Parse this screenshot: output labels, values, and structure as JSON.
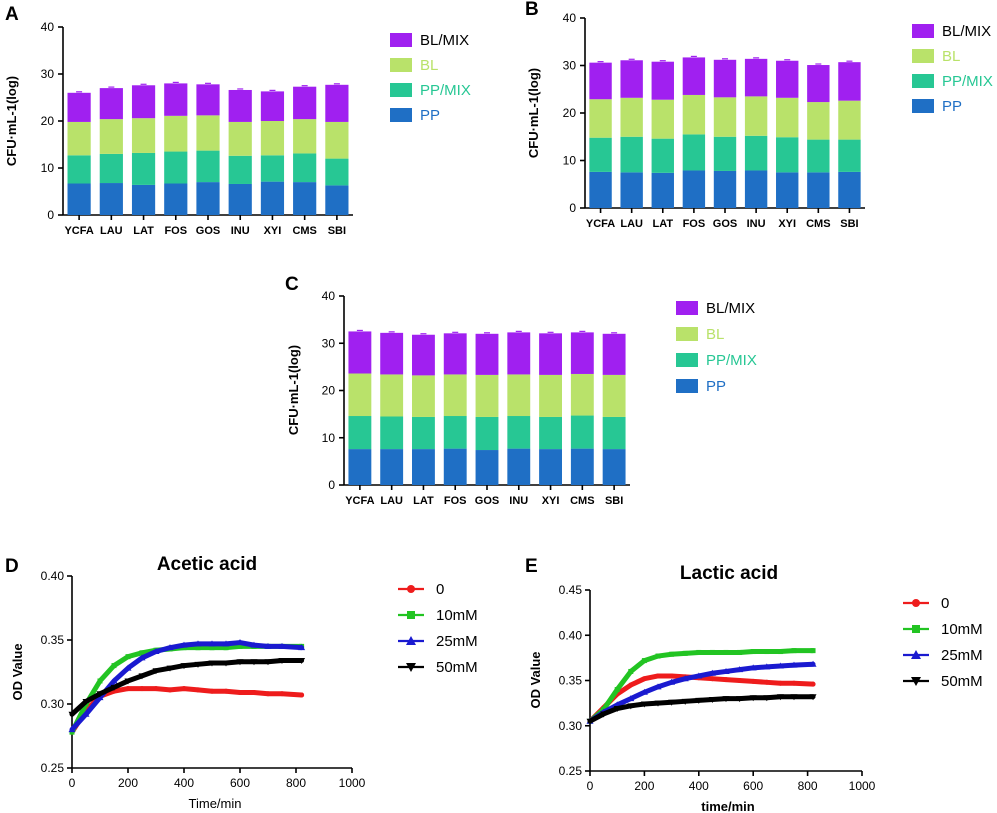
{
  "colors": {
    "PP": "#1f6fc5",
    "PP/MIX": "#27c794",
    "BL": "#b9e26a",
    "BL/MIX": "#a020f0",
    "0": "#ee1c1c",
    "10mM": "#22c422",
    "25mM": "#1a1ad0",
    "50mM": "#000000"
  },
  "chart_data": [
    {
      "panel": "A",
      "type": "bar",
      "stacked": true,
      "ylabel": "CFU·mL-1(log)",
      "ylim": [
        0,
        40
      ],
      "yticks": [
        "0",
        "10",
        "20",
        "30",
        "40"
      ],
      "categories": [
        "YCFA",
        "LAU",
        "LAT",
        "FOS",
        "GOS",
        "INU",
        "XYI",
        "CMS",
        "SBI"
      ],
      "series": [
        {
          "name": "PP",
          "values": [
            6.7,
            6.8,
            6.4,
            6.7,
            7.0,
            6.6,
            7.1,
            7.0,
            6.3
          ]
        },
        {
          "name": "PP/MIX",
          "values": [
            6.0,
            6.2,
            6.8,
            6.8,
            6.7,
            6.0,
            5.6,
            6.1,
            5.7
          ]
        },
        {
          "name": "BL",
          "values": [
            7.1,
            7.4,
            7.4,
            7.6,
            7.5,
            7.2,
            7.3,
            7.3,
            7.8
          ]
        },
        {
          "name": "BL/MIX",
          "values": [
            6.2,
            6.6,
            7.0,
            6.9,
            6.6,
            6.8,
            6.3,
            6.9,
            7.9
          ]
        }
      ],
      "legend": [
        "BL/MIX",
        "BL",
        "PP/MIX",
        "PP"
      ]
    },
    {
      "panel": "B",
      "type": "bar",
      "stacked": true,
      "ylabel": "CFU·mL-1(log)",
      "ylim": [
        0,
        40
      ],
      "yticks": [
        "0",
        "10",
        "20",
        "30",
        "40"
      ],
      "categories": [
        "YCFA",
        "LAU",
        "LAT",
        "FOS",
        "GOS",
        "INU",
        "XYI",
        "CMS",
        "SBI"
      ],
      "series": [
        {
          "name": "PP",
          "values": [
            7.6,
            7.5,
            7.4,
            7.9,
            7.8,
            7.9,
            7.5,
            7.5,
            7.6
          ]
        },
        {
          "name": "PP/MIX",
          "values": [
            7.2,
            7.5,
            7.2,
            7.6,
            7.2,
            7.3,
            7.4,
            6.9,
            6.8
          ]
        },
        {
          "name": "BL",
          "values": [
            8.1,
            8.2,
            8.2,
            8.3,
            8.3,
            8.3,
            8.3,
            7.9,
            8.2
          ]
        },
        {
          "name": "BL/MIX",
          "values": [
            7.7,
            7.9,
            8.0,
            7.9,
            7.9,
            7.9,
            7.8,
            7.8,
            8.1
          ]
        }
      ],
      "legend": [
        "BL/MIX",
        "BL",
        "PP/MIX",
        "PP"
      ]
    },
    {
      "panel": "C",
      "type": "bar",
      "stacked": true,
      "ylabel": "CFU·mL-1(log)",
      "ylim": [
        0,
        40
      ],
      "yticks": [
        "0",
        "10",
        "20",
        "30",
        "40"
      ],
      "categories": [
        "YCFA",
        "LAU",
        "LAT",
        "FOS",
        "GOS",
        "INU",
        "XYI",
        "CMS",
        "SBI"
      ],
      "series": [
        {
          "name": "PP",
          "values": [
            7.6,
            7.6,
            7.6,
            7.7,
            7.4,
            7.7,
            7.6,
            7.7,
            7.6
          ]
        },
        {
          "name": "PP/MIX",
          "values": [
            7.0,
            6.9,
            6.8,
            6.9,
            7.0,
            6.9,
            6.8,
            7.0,
            6.8
          ]
        },
        {
          "name": "BL",
          "values": [
            9.0,
            8.9,
            8.8,
            8.8,
            8.9,
            8.8,
            8.9,
            8.8,
            8.9
          ]
        },
        {
          "name": "BL/MIX",
          "values": [
            8.9,
            8.8,
            8.6,
            8.7,
            8.7,
            8.9,
            8.8,
            8.8,
            8.7
          ]
        }
      ],
      "legend": [
        "BL/MIX",
        "BL",
        "PP/MIX",
        "PP"
      ]
    },
    {
      "panel": "D",
      "type": "line",
      "title": "Acetic acid",
      "xlabel": "Time/min",
      "ylabel": "OD Value",
      "xlim": [
        0,
        1000
      ],
      "ylim": [
        0.25,
        0.4
      ],
      "xticks": [
        "0",
        "200",
        "400",
        "600",
        "800",
        "1000"
      ],
      "yticks": [
        "0.25",
        "0.30",
        "0.35",
        "0.40"
      ],
      "series": [
        {
          "name": "0",
          "marker": "circle",
          "x": [
            0,
            50,
            100,
            150,
            200,
            250,
            300,
            350,
            400,
            450,
            500,
            550,
            600,
            650,
            700,
            750,
            820
          ],
          "y": [
            0.278,
            0.295,
            0.306,
            0.31,
            0.312,
            0.312,
            0.312,
            0.311,
            0.312,
            0.311,
            0.31,
            0.31,
            0.309,
            0.309,
            0.308,
            0.308,
            0.307
          ]
        },
        {
          "name": "10mM",
          "marker": "square",
          "x": [
            0,
            50,
            100,
            150,
            200,
            250,
            300,
            350,
            400,
            450,
            500,
            550,
            600,
            650,
            700,
            750,
            820
          ],
          "y": [
            0.278,
            0.3,
            0.318,
            0.33,
            0.337,
            0.34,
            0.342,
            0.343,
            0.344,
            0.344,
            0.344,
            0.344,
            0.345,
            0.345,
            0.345,
            0.345,
            0.345
          ]
        },
        {
          "name": "25mM",
          "marker": "triangle",
          "x": [
            0,
            50,
            100,
            150,
            200,
            250,
            300,
            350,
            400,
            450,
            500,
            550,
            600,
            650,
            700,
            750,
            820
          ],
          "y": [
            0.28,
            0.292,
            0.305,
            0.318,
            0.328,
            0.336,
            0.341,
            0.344,
            0.346,
            0.347,
            0.347,
            0.347,
            0.348,
            0.346,
            0.345,
            0.345,
            0.344
          ]
        },
        {
          "name": "50mM",
          "marker": "triangle-down",
          "x": [
            0,
            50,
            100,
            150,
            200,
            250,
            300,
            350,
            400,
            450,
            500,
            550,
            600,
            650,
            700,
            750,
            820
          ],
          "y": [
            0.292,
            0.302,
            0.308,
            0.313,
            0.318,
            0.322,
            0.326,
            0.328,
            0.33,
            0.331,
            0.332,
            0.332,
            0.333,
            0.333,
            0.333,
            0.334,
            0.334
          ]
        }
      ],
      "legend": [
        "0",
        "10mM",
        "25mM",
        "50mM"
      ]
    },
    {
      "panel": "E",
      "type": "line",
      "title": "Lactic acid",
      "xlabel": "time/min",
      "ylabel": "OD Value",
      "xlim": [
        0,
        1000
      ],
      "ylim": [
        0.25,
        0.45
      ],
      "xticks": [
        "0",
        "200",
        "400",
        "600",
        "800",
        "1000"
      ],
      "yticks": [
        "0.25",
        "0.30",
        "0.35",
        "0.40",
        "0.45"
      ],
      "series": [
        {
          "name": "0",
          "marker": "circle",
          "x": [
            0,
            50,
            100,
            150,
            200,
            250,
            300,
            350,
            400,
            450,
            500,
            550,
            600,
            650,
            700,
            750,
            820
          ],
          "y": [
            0.305,
            0.32,
            0.335,
            0.345,
            0.352,
            0.355,
            0.355,
            0.354,
            0.353,
            0.352,
            0.351,
            0.35,
            0.349,
            0.348,
            0.347,
            0.347,
            0.346
          ]
        },
        {
          "name": "10mM",
          "marker": "square",
          "x": [
            0,
            50,
            100,
            150,
            200,
            250,
            300,
            350,
            400,
            450,
            500,
            550,
            600,
            650,
            700,
            750,
            820
          ],
          "y": [
            0.305,
            0.318,
            0.34,
            0.36,
            0.372,
            0.377,
            0.379,
            0.38,
            0.381,
            0.381,
            0.381,
            0.381,
            0.382,
            0.382,
            0.382,
            0.383,
            0.383
          ]
        },
        {
          "name": "25mM",
          "marker": "triangle",
          "x": [
            0,
            50,
            100,
            150,
            200,
            250,
            300,
            350,
            400,
            450,
            500,
            550,
            600,
            650,
            700,
            750,
            820
          ],
          "y": [
            0.305,
            0.315,
            0.323,
            0.33,
            0.337,
            0.343,
            0.348,
            0.352,
            0.355,
            0.358,
            0.36,
            0.362,
            0.364,
            0.365,
            0.366,
            0.367,
            0.368
          ]
        },
        {
          "name": "50mM",
          "marker": "triangle-down",
          "x": [
            0,
            50,
            100,
            150,
            200,
            250,
            300,
            350,
            400,
            450,
            500,
            550,
            600,
            650,
            700,
            750,
            820
          ],
          "y": [
            0.305,
            0.313,
            0.319,
            0.322,
            0.324,
            0.325,
            0.326,
            0.327,
            0.328,
            0.329,
            0.33,
            0.33,
            0.331,
            0.331,
            0.332,
            0.332,
            0.332
          ]
        }
      ],
      "legend": [
        "0",
        "10mM",
        "25mM",
        "50mM"
      ]
    }
  ]
}
